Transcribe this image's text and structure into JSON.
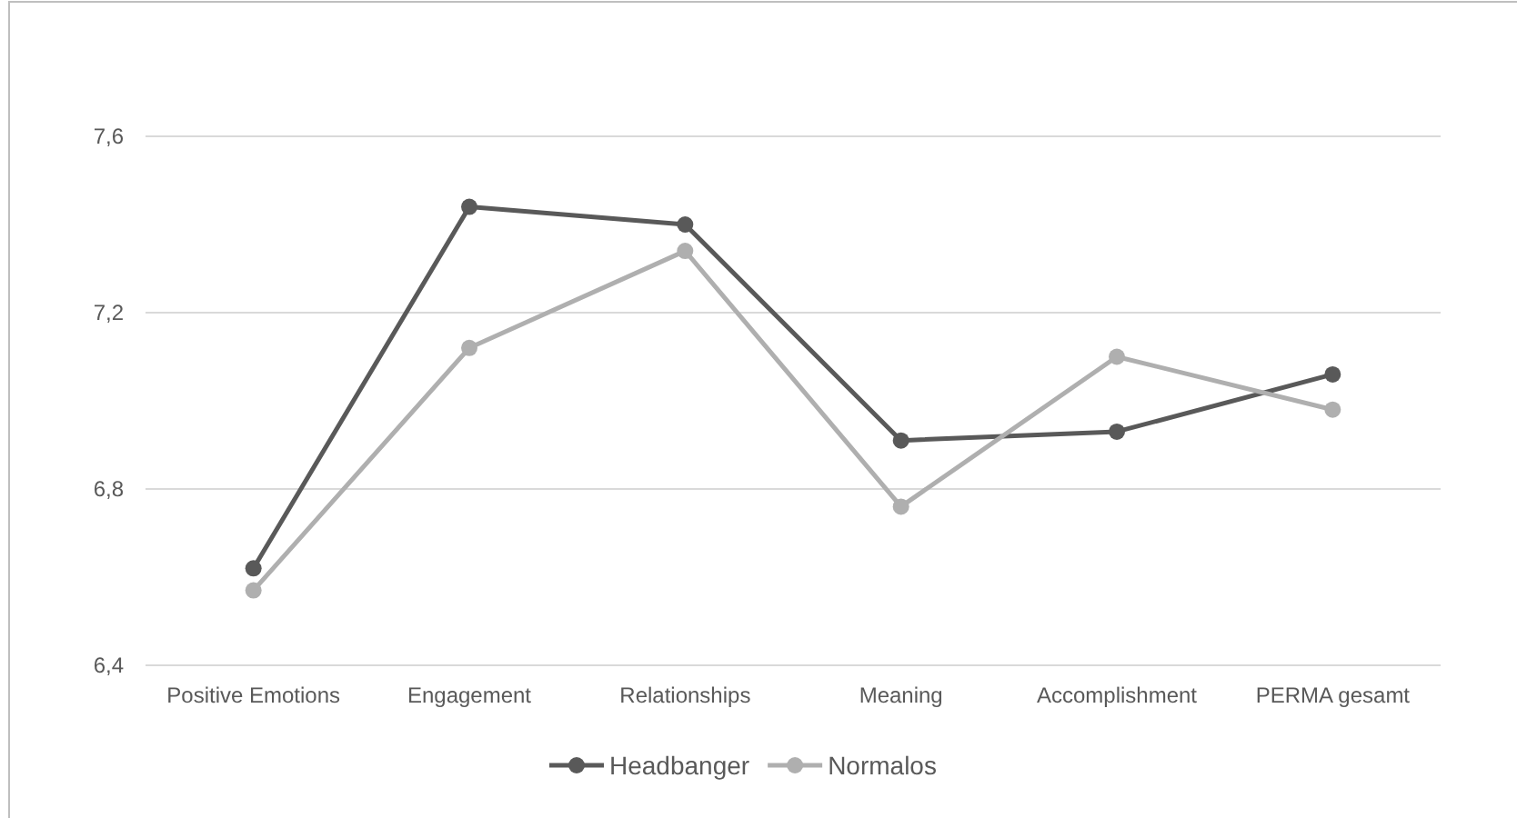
{
  "chart_data": {
    "type": "line",
    "categories": [
      "Positive Emotions",
      "Engagement",
      "Relationships",
      "Meaning",
      "Accomplishment",
      "PERMA gesamt"
    ],
    "series": [
      {
        "name": "Headbanger",
        "color": "#595959",
        "values": [
          6.62,
          7.44,
          7.4,
          6.91,
          6.93,
          7.06
        ]
      },
      {
        "name": "Normalos",
        "color": "#afafaf",
        "values": [
          6.57,
          7.12,
          7.34,
          6.76,
          7.1,
          6.98
        ]
      }
    ],
    "ylim": [
      6.4,
      7.6
    ],
    "yticks": [
      {
        "value": 6.4,
        "label": "6,4"
      },
      {
        "value": 6.8,
        "label": "6,8"
      },
      {
        "value": 7.2,
        "label": "7,2"
      },
      {
        "value": 7.6,
        "label": "7,6"
      }
    ],
    "grid": "y",
    "legend": "bottom",
    "marker": "circle",
    "line_style": "solid"
  }
}
